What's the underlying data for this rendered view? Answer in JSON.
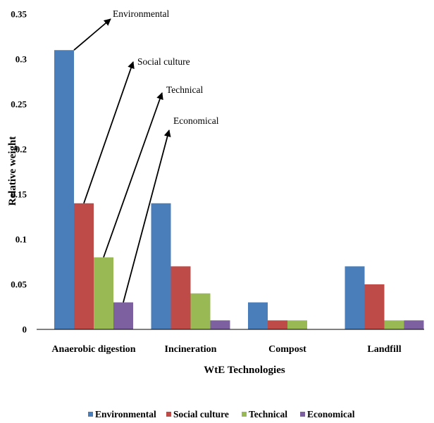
{
  "chart_data": {
    "type": "bar",
    "title": "",
    "xlabel": "WtE Technologies",
    "ylabel": "Relative weight",
    "ylim": [
      0,
      0.35
    ],
    "yticks": [
      "0",
      "0.05",
      "0.1",
      "0.15",
      "0.2",
      "0.25",
      "0.3",
      "0.35"
    ],
    "grid": false,
    "legend_position": "bottom",
    "categories": [
      "Anaerobic digestion",
      "Incineration",
      "Compost",
      "Landfill"
    ],
    "series": [
      {
        "name": "Environmental",
        "color": "#4a7ebb",
        "values": [
          0.31,
          0.14,
          0.03,
          0.07
        ]
      },
      {
        "name": "Social culture",
        "color": "#be4b48",
        "values": [
          0.14,
          0.07,
          0.01,
          0.05
        ]
      },
      {
        "name": "Technical",
        "color": "#98b954",
        "values": [
          0.08,
          0.04,
          0.01,
          0.01
        ]
      },
      {
        "name": "Economical",
        "color": "#7d60a0",
        "values": [
          0.03,
          0.01,
          0.0,
          0.01
        ]
      }
    ],
    "annotations": [
      {
        "text": "Environmental",
        "series": 0,
        "category": 0
      },
      {
        "text": "Social culture",
        "series": 1,
        "category": 0
      },
      {
        "text": "Technical",
        "series": 2,
        "category": 0
      },
      {
        "text": "Economical",
        "series": 3,
        "category": 0
      }
    ]
  }
}
